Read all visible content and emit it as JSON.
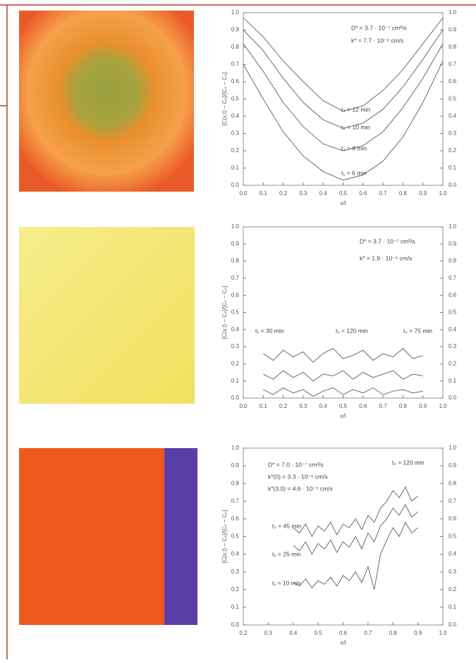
{
  "chart_data": [
    {
      "type": "line",
      "x_label": "x/l",
      "y_label": "[C(x,t) − C₀]/[Cₛ − C₀]",
      "xlim": [
        0,
        1
      ],
      "xticks": [
        {
          "value": 0,
          "label": "0.0"
        },
        0.1,
        0.2,
        0.3,
        0.4,
        0.5,
        0.6,
        0.7,
        0.8,
        0.9,
        {
          "value": 1,
          "label": "1.0"
        }
      ],
      "ylim": [
        0,
        1
      ],
      "yticks": [
        {
          "value": 0,
          "label": "0.0"
        },
        0.1,
        0.2,
        0.3,
        0.4,
        0.5,
        0.6,
        0.7,
        0.8,
        0.9,
        {
          "value": 1,
          "label": "1.0"
        }
      ],
      "annotations": [
        "D* = 3.7 · 10⁻⁷ cm²/s",
        "k* = 7.7 · 10⁻⁶ cm/s",
        "t₄ = 12 min",
        "t₃ = 10 min",
        "t₂ = 8 min",
        "t₁ = 6 min"
      ],
      "color": "#6a6a6a",
      "x": [
        0,
        0.1,
        0.2,
        0.3,
        0.4,
        0.5,
        0.6,
        0.7,
        0.8,
        0.9,
        1
      ],
      "series": [
        {
          "values": [
            0.97,
            0.86,
            0.72,
            0.6,
            0.49,
            0.43,
            0.46,
            0.55,
            0.67,
            0.82,
            0.97
          ]
        },
        {
          "values": [
            0.9,
            0.78,
            0.62,
            0.48,
            0.38,
            0.33,
            0.36,
            0.44,
            0.57,
            0.73,
            0.9
          ]
        },
        {
          "values": [
            0.82,
            0.66,
            0.48,
            0.34,
            0.24,
            0.2,
            0.23,
            0.31,
            0.45,
            0.62,
            0.82
          ]
        },
        {
          "values": [
            0.7,
            0.5,
            0.31,
            0.17,
            0.08,
            0.03,
            0.06,
            0.14,
            0.28,
            0.48,
            0.72
          ]
        }
      ]
    },
    {
      "type": "line",
      "x_label": "x/l",
      "y_label": "[C(x,t) − C₀]/[Cₛ − C₀]",
      "xlim": [
        0,
        1
      ],
      "xticks": [
        {
          "value": 0,
          "label": "0.0"
        },
        0.1,
        0.2,
        0.3,
        0.4,
        0.5,
        0.6,
        0.7,
        0.8,
        0.9,
        {
          "value": 1,
          "label": "1.0"
        }
      ],
      "ylim": [
        0,
        1
      ],
      "yticks": [
        {
          "value": 0,
          "label": "0.0"
        },
        0.1,
        0.2,
        0.3,
        0.4,
        0.5,
        0.6,
        0.7,
        0.8,
        0.9,
        {
          "value": 1,
          "label": "1.0"
        }
      ],
      "annotations": [
        "D* = 3.7 · 10⁻⁷ cm²/s",
        "k* = 1.9 · 10⁻⁵ cm/s",
        "t₁ = 30 min",
        "t₂ = 120 min",
        "t₃ = 75 min"
      ],
      "color": "#6a6a6a",
      "x": [
        0.1,
        0.15,
        0.2,
        0.25,
        0.3,
        0.35,
        0.4,
        0.45,
        0.5,
        0.55,
        0.6,
        0.65,
        0.7,
        0.75,
        0.8,
        0.85,
        0.9
      ],
      "series": [
        {
          "values": [
            0.26,
            0.22,
            0.28,
            0.24,
            0.27,
            0.21,
            0.26,
            0.29,
            0.23,
            0.25,
            0.28,
            0.22,
            0.26,
            0.24,
            0.29,
            0.23,
            0.25
          ]
        },
        {
          "values": [
            0.14,
            0.11,
            0.16,
            0.12,
            0.15,
            0.1,
            0.14,
            0.13,
            0.16,
            0.11,
            0.15,
            0.12,
            0.14,
            0.16,
            0.11,
            0.14,
            0.13
          ]
        },
        {
          "values": [
            0.05,
            0.02,
            0.06,
            0.03,
            0.05,
            0.01,
            0.04,
            0.06,
            0.02,
            0.05,
            0.03,
            0.06,
            0.02,
            0.04,
            0.05,
            0.03,
            0.04
          ]
        }
      ]
    },
    {
      "type": "line",
      "x_label": "x/l",
      "y_label": "[C(x,t) − C₀]/[Cₛ − C₀]",
      "xlim": [
        0.2,
        1
      ],
      "xticks": [
        0.2,
        0.3,
        0.4,
        0.5,
        0.6,
        0.7,
        0.8,
        0.9,
        {
          "value": 1,
          "label": "1.0"
        }
      ],
      "ylim": [
        0,
        1
      ],
      "yticks": [
        {
          "value": 0,
          "label": "0.0"
        },
        0.1,
        0.2,
        0.3,
        0.4,
        0.5,
        0.6,
        0.7,
        0.8,
        0.9,
        {
          "value": 1,
          "label": "1.0"
        }
      ],
      "annotations": [
        "D* = 7.0 · 10⁻⁷ cm²/s",
        "k*(0) = 3.3 · 10⁻⁶ cm/s",
        "k*(3.0) = 4.6 · 10⁻⁵ cm/s",
        "t₄ = 120 min",
        "t₃ = 45 min",
        "t₂ = 25 min",
        "t₁ = 10 min"
      ],
      "color": "#6a6a6a",
      "x": [
        0.4,
        0.425,
        0.45,
        0.475,
        0.5,
        0.525,
        0.55,
        0.575,
        0.6,
        0.625,
        0.65,
        0.675,
        0.7,
        0.725,
        0.75,
        0.775,
        0.8,
        0.825,
        0.85,
        0.875,
        0.9
      ],
      "series": [
        {
          "values": [
            0.55,
            0.52,
            0.57,
            0.5,
            0.56,
            0.53,
            0.58,
            0.51,
            0.57,
            0.55,
            0.6,
            0.54,
            0.62,
            0.58,
            0.66,
            0.7,
            0.76,
            0.72,
            0.78,
            0.7,
            0.73
          ]
        },
        {
          "values": [
            0.45,
            0.42,
            0.47,
            0.4,
            0.46,
            0.43,
            0.48,
            0.41,
            0.47,
            0.44,
            0.5,
            0.43,
            0.52,
            0.47,
            0.56,
            0.6,
            0.66,
            0.62,
            0.68,
            0.61,
            0.64
          ]
        },
        {
          "values": [
            0.24,
            0.22,
            0.26,
            0.21,
            0.25,
            0.23,
            0.27,
            0.22,
            0.28,
            0.25,
            0.3,
            0.24,
            0.33,
            0.2,
            0.4,
            0.48,
            0.55,
            0.5,
            0.58,
            0.52,
            0.55
          ]
        }
      ]
    }
  ]
}
